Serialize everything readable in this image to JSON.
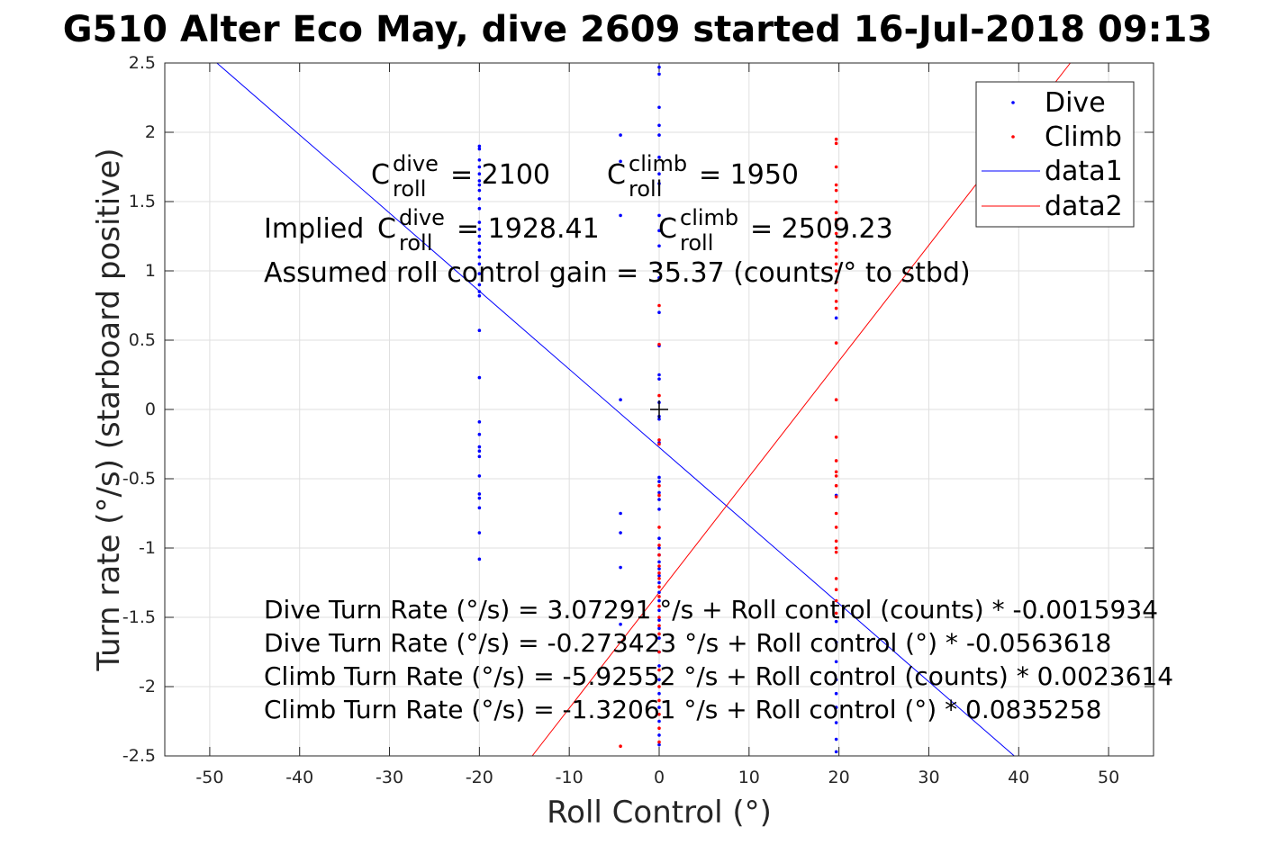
{
  "chart_data": {
    "type": "scatter",
    "title": "G510 Alter Eco May, dive 2609 started 16-Jul-2018 09:13",
    "xlabel": "Roll Control (°)",
    "ylabel": "Turn rate (°/s) (starboard positive)",
    "xlim": [
      -55,
      55
    ],
    "ylim": [
      -2.5,
      2.5
    ],
    "xticks": [
      -50,
      -40,
      -30,
      -20,
      -10,
      0,
      10,
      20,
      30,
      40,
      50
    ],
    "yticks": [
      -2.5,
      -2,
      -1.5,
      -1,
      -0.5,
      0,
      0.5,
      1,
      1.5,
      2,
      2.5
    ],
    "xtick_labels": [
      "-50",
      "-40",
      "-30",
      "-20",
      "-10",
      "0",
      "10",
      "20",
      "30",
      "40",
      "50"
    ],
    "ytick_labels": [
      "-2.5",
      "-2",
      "-1.5",
      "-1",
      "-0.5",
      "0",
      "0.5",
      "1",
      "1.5",
      "2",
      "2.5"
    ],
    "grid": true,
    "legend_position": "top-right",
    "series": [
      {
        "name": "Dive",
        "kind": "scatter",
        "color": "#0000ff",
        "points": [
          [
            -20,
            1.9
          ],
          [
            -20,
            1.88
          ],
          [
            -20,
            1.8
          ],
          [
            -20,
            1.75
          ],
          [
            -20,
            1.7
          ],
          [
            -20,
            1.65
          ],
          [
            -20,
            1.62
          ],
          [
            -20,
            1.58
          ],
          [
            -20,
            1.52
          ],
          [
            -20,
            1.45
          ],
          [
            -20,
            1.35
          ],
          [
            -20,
            1.3
          ],
          [
            -20,
            1.25
          ],
          [
            -20,
            1.2
          ],
          [
            -20,
            1.15
          ],
          [
            -20,
            1.1
          ],
          [
            -20,
            1.05
          ],
          [
            -20,
            0.98
          ],
          [
            -20,
            0.9
          ],
          [
            -20,
            0.85
          ],
          [
            -20,
            0.82
          ],
          [
            -20,
            0.57
          ],
          [
            -20,
            0.23
          ],
          [
            -20,
            -0.09
          ],
          [
            -20,
            -0.18
          ],
          [
            -20,
            -0.27
          ],
          [
            -20,
            -0.3
          ],
          [
            -20,
            -0.34
          ],
          [
            -20,
            -0.48
          ],
          [
            -20,
            -0.61
          ],
          [
            -20,
            -0.64
          ],
          [
            -20,
            -0.71
          ],
          [
            -20,
            -0.89
          ],
          [
            -20,
            -1.08
          ],
          [
            -4.3,
            1.98
          ],
          [
            -4.3,
            1.79
          ],
          [
            -4.3,
            1.4
          ],
          [
            -4.3,
            0.07
          ],
          [
            -4.3,
            -0.75
          ],
          [
            -4.3,
            -0.89
          ],
          [
            -4.3,
            -1.14
          ],
          [
            -4.3,
            -1.55
          ],
          [
            0,
            2.47
          ],
          [
            0,
            2.42
          ],
          [
            0,
            2.18
          ],
          [
            0,
            2.05
          ],
          [
            0,
            1.98
          ],
          [
            0,
            1.82
          ],
          [
            0,
            1.7
          ],
          [
            0,
            1.63
          ],
          [
            0,
            1.4
          ],
          [
            0,
            1.29
          ],
          [
            0,
            1.18
          ],
          [
            0,
            1.05
          ],
          [
            0,
            0.95
          ],
          [
            0,
            0.7
          ],
          [
            0,
            0.46
          ],
          [
            0,
            0.25
          ],
          [
            0,
            0.22
          ],
          [
            0,
            0.05
          ],
          [
            0,
            -0.05
          ],
          [
            0,
            -0.07
          ],
          [
            0,
            -0.24
          ],
          [
            0,
            -0.49
          ],
          [
            0,
            -0.52
          ],
          [
            0,
            -0.6
          ],
          [
            0,
            -0.65
          ],
          [
            0,
            -0.72
          ],
          [
            0,
            -0.93
          ],
          [
            0,
            -1.0
          ],
          [
            0,
            -1.05
          ],
          [
            0,
            -1.1
          ],
          [
            0,
            -1.15
          ],
          [
            0,
            -1.2
          ],
          [
            0,
            -1.25
          ],
          [
            0,
            -1.32
          ],
          [
            0,
            -1.38
          ],
          [
            0,
            -1.45
          ],
          [
            0,
            -1.52
          ],
          [
            0,
            -1.58
          ],
          [
            0,
            -1.65
          ],
          [
            0,
            -1.75
          ],
          [
            0,
            -1.85
          ],
          [
            0,
            -1.95
          ],
          [
            0,
            -2.05
          ],
          [
            0,
            -2.15
          ],
          [
            0,
            -2.25
          ],
          [
            0,
            -2.35
          ],
          [
            0,
            -2.42
          ],
          [
            19.7,
            0.66
          ],
          [
            19.7,
            -0.62
          ],
          [
            19.7,
            -1.53
          ],
          [
            19.7,
            -1.68
          ],
          [
            19.7,
            -1.82
          ],
          [
            19.7,
            -1.95
          ],
          [
            19.7,
            -2.05
          ],
          [
            19.7,
            -2.15
          ],
          [
            19.7,
            -2.26
          ],
          [
            19.7,
            -2.38
          ],
          [
            19.7,
            -2.47
          ]
        ]
      },
      {
        "name": "Climb",
        "kind": "scatter",
        "color": "#ff0000",
        "points": [
          [
            -4.3,
            -2.43
          ],
          [
            0,
            0.75
          ],
          [
            0,
            0.47
          ],
          [
            0,
            0.1
          ],
          [
            0,
            -0.22
          ],
          [
            0,
            -0.25
          ],
          [
            0,
            -0.55
          ],
          [
            0,
            -0.62
          ],
          [
            0,
            -0.85
          ],
          [
            0,
            -0.98
          ],
          [
            0,
            -1.05
          ],
          [
            0,
            -1.13
          ],
          [
            0,
            -1.18
          ],
          [
            0,
            -1.22
          ],
          [
            0,
            -1.28
          ],
          [
            0,
            -1.35
          ],
          [
            0,
            -1.42
          ],
          [
            0,
            -1.5
          ],
          [
            0,
            -1.56
          ],
          [
            0,
            -1.62
          ],
          [
            0,
            -1.75
          ],
          [
            0,
            -1.88
          ],
          [
            0,
            -2.0
          ],
          [
            0,
            -2.1
          ],
          [
            0,
            -2.2
          ],
          [
            0,
            -2.3
          ],
          [
            0,
            -2.4
          ],
          [
            19.7,
            1.95
          ],
          [
            19.7,
            1.92
          ],
          [
            19.7,
            1.75
          ],
          [
            19.7,
            1.62
          ],
          [
            19.7,
            1.58
          ],
          [
            19.7,
            1.5
          ],
          [
            19.7,
            1.42
          ],
          [
            19.7,
            1.37
          ],
          [
            19.7,
            1.33
          ],
          [
            19.7,
            1.27
          ],
          [
            19.7,
            1.2
          ],
          [
            19.7,
            1.15
          ],
          [
            19.7,
            1.1
          ],
          [
            19.7,
            1.05
          ],
          [
            19.7,
            1.0
          ],
          [
            19.7,
            0.92
          ],
          [
            19.7,
            0.86
          ],
          [
            19.7,
            0.78
          ],
          [
            19.7,
            0.73
          ],
          [
            19.7,
            0.48
          ],
          [
            19.7,
            0.07
          ],
          [
            19.7,
            -0.2
          ],
          [
            19.7,
            -0.37
          ],
          [
            19.7,
            -0.45
          ],
          [
            19.7,
            -0.48
          ],
          [
            19.7,
            -0.55
          ],
          [
            19.7,
            -0.63
          ],
          [
            19.7,
            -0.75
          ],
          [
            19.7,
            -0.85
          ],
          [
            19.7,
            -0.95
          ],
          [
            19.7,
            -1.0
          ],
          [
            19.7,
            -1.03
          ],
          [
            19.7,
            -1.22
          ],
          [
            19.7,
            -1.3
          ],
          [
            19.7,
            -1.38
          ],
          [
            19.7,
            -1.47
          ]
        ]
      },
      {
        "name": "data1",
        "kind": "line",
        "color": "#0000ff",
        "intercept": -0.273423,
        "slope": -0.0563618
      },
      {
        "name": "data2",
        "kind": "line",
        "color": "#ff0000",
        "intercept": -1.32061,
        "slope": 0.0835258
      }
    ],
    "marker": {
      "symbol": "+",
      "x": 0,
      "y": 0,
      "color": "#000000"
    },
    "annotations": {
      "c_dive": {
        "base": "C",
        "sup": "dive",
        "sub": "roll",
        "value": "= 2100"
      },
      "c_climb": {
        "base": "C",
        "sup": "climb",
        "sub": "roll",
        "value": "= 1950"
      },
      "implied_prefix": "Implied ",
      "implied_dive": {
        "base": "C",
        "sup": "dive",
        "sub": "roll",
        "value": "= 1928.41"
      },
      "implied_climb": {
        "base": "C",
        "sup": "climb",
        "sub": "roll",
        "value": "= 2509.23"
      },
      "gain": "Assumed roll control gain = 35.37 (counts/° to stbd)",
      "equations": [
        "Dive Turn Rate (°/s) = 3.07291 °/s + Roll control (counts) * -0.0015934",
        "Dive Turn Rate (°/s) = -0.273423 °/s + Roll control (°) * -0.0563618",
        "Climb Turn Rate (°/s) = -5.92552 °/s + Roll control (counts) * 0.0023614",
        "Climb Turn Rate (°/s) = -1.32061 °/s + Roll control (°) * 0.0835258"
      ]
    }
  }
}
